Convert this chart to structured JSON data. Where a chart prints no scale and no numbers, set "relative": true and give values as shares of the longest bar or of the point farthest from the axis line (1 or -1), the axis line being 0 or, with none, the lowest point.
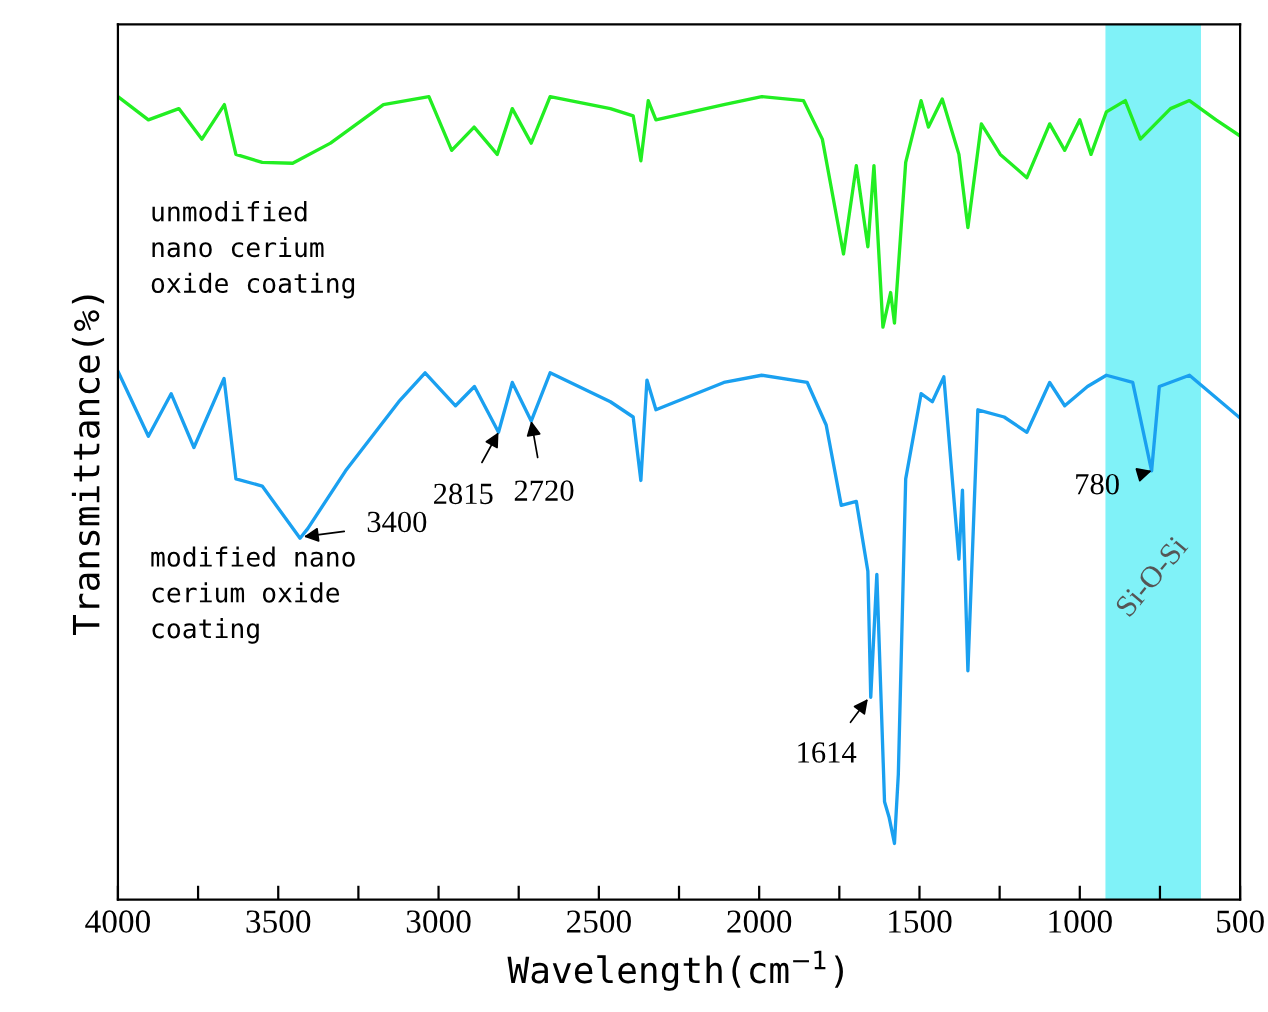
{
  "chart_data": {
    "type": "line",
    "relative": true,
    "xlabel": "Wavelength(cm$^{−1}$)",
    "ylabel": "Transmittance(%)",
    "xlim": [
      4000,
      500
    ],
    "xticks": [
      4000,
      {
        "value": 3750,
        "label": null
      },
      3500,
      {
        "value": 3250,
        "label": null
      },
      3000,
      {
        "value": 2750,
        "label": null
      },
      2500,
      {
        "value": 2250,
        "label": null
      },
      2000,
      {
        "value": 1750,
        "label": null
      },
      1500,
      {
        "value": 1250,
        "label": null
      },
      1000,
      {
        "value": 750,
        "label": null
      },
      500
    ],
    "tick_labels": "x",
    "grid": false,
    "legend": false,
    "series": [
      {
        "name": "unmodified\nnano cerium\noxide coating",
        "color": "#22ee22",
        "x": [
          4000,
          3905,
          3810,
          3738,
          3668,
          3632,
          3550,
          3455,
          3337,
          3172,
          3030,
          2959,
          2889,
          2817,
          2770,
          2711,
          2652,
          2464,
          2393,
          2369,
          2346,
          2322,
          2110,
          1992,
          1862,
          1803,
          1737,
          1697,
          1661,
          1642,
          1614,
          1590,
          1578,
          1543,
          1495,
          1472,
          1429,
          1377,
          1349,
          1307,
          1248,
          1165,
          1094,
          1047,
          1000,
          965,
          917,
          858,
          811,
          717,
          658,
          575,
          504
        ],
        "values": [
          1.0,
          0.971,
          0.985,
          0.947,
          0.99,
          0.928,
          0.918,
          0.917,
          0.942,
          0.99,
          1.0,
          0.933,
          0.962,
          0.928,
          0.985,
          0.942,
          1.0,
          0.985,
          0.976,
          0.92,
          0.995,
          0.971,
          0.99,
          1.0,
          0.995,
          0.947,
          0.804,
          0.914,
          0.813,
          0.914,
          0.713,
          0.756,
          0.718,
          0.918,
          0.995,
          0.962,
          0.997,
          0.928,
          0.837,
          0.966,
          0.928,
          0.899,
          0.966,
          0.933,
          0.971,
          0.928,
          0.981,
          0.995,
          0.947,
          0.985,
          0.995,
          0.971,
          0.952
        ]
      },
      {
        "name": "modified nano\ncerium oxide\ncoating",
        "color": "#1aa0f0",
        "x": [
          4000,
          3905,
          3834,
          3763,
          3669,
          3632,
          3550,
          3432,
          3408,
          3290,
          3124,
          3042,
          2947,
          2888,
          2813,
          2770,
          2711,
          2652,
          2464,
          2393,
          2369,
          2350,
          2322,
          2110,
          1992,
          1850,
          1791,
          1744,
          1697,
          1661,
          1652,
          1633,
          1609,
          1595,
          1578,
          1566,
          1543,
          1495,
          1460,
          1424,
          1377,
          1366,
          1349,
          1318,
          1236,
          1165,
          1094,
          1047,
          976,
          917,
          835,
          776,
          752,
          658,
          575,
          504
        ],
        "values": [
          0.658,
          0.577,
          0.63,
          0.563,
          0.649,
          0.524,
          0.515,
          0.45,
          0.462,
          0.534,
          0.62,
          0.656,
          0.615,
          0.639,
          0.582,
          0.644,
          0.596,
          0.656,
          0.62,
          0.601,
          0.522,
          0.647,
          0.61,
          0.644,
          0.653,
          0.644,
          0.591,
          0.491,
          0.496,
          0.409,
          0.252,
          0.405,
          0.122,
          0.103,
          0.07,
          0.156,
          0.524,
          0.63,
          0.62,
          0.651,
          0.424,
          0.51,
          0.285,
          0.61,
          0.601,
          0.582,
          0.644,
          0.615,
          0.639,
          0.653,
          0.644,
          0.534,
          0.639,
          0.653,
          0.625,
          0.601
        ]
      }
    ],
    "bands": [
      {
        "axis": "x",
        "from": 920,
        "to": 622,
        "label": "Si-O-Si",
        "color": "#80f2f8"
      }
    ],
    "annotations": [
      {
        "text": "3400",
        "x": 3420,
        "y": 0.452
      },
      {
        "text": "2815",
        "x": 2813,
        "y": 0.582
      },
      {
        "text": "2720",
        "x": 2711,
        "y": 0.596
      },
      {
        "text": "1614",
        "x": 1661,
        "y": 0.25
      },
      {
        "text": "780",
        "x": 776,
        "y": 0.534
      }
    ]
  }
}
